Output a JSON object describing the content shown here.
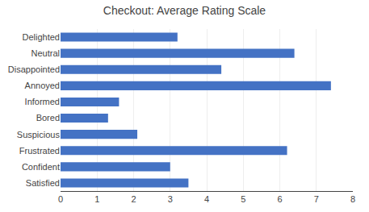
{
  "chart_data": {
    "type": "bar",
    "title": "Checkout: Average Rating Scale",
    "orientation": "horizontal",
    "categories": [
      "Delighted",
      "Neutral",
      "Disappointed",
      "Annoyed",
      "Informed",
      "Bored",
      "Suspicious",
      "Frustrated",
      "Confident",
      "Satisfied"
    ],
    "values": [
      3.2,
      6.4,
      4.4,
      7.4,
      1.6,
      1.3,
      2.1,
      6.2,
      3.0,
      3.5
    ],
    "color": "#4472c4",
    "xlim": [
      0,
      8
    ],
    "xticks": [
      0,
      1,
      2,
      3,
      4,
      5,
      6,
      7,
      8
    ],
    "grid": true
  }
}
